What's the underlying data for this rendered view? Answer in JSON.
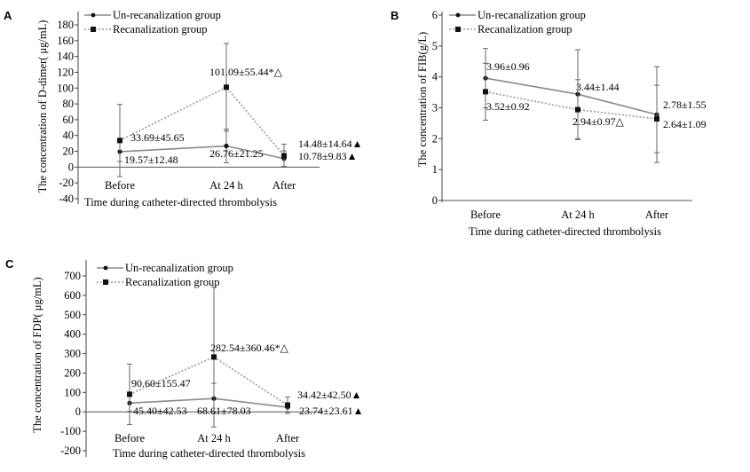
{
  "chart_data": [
    {
      "panel": "A",
      "type": "line",
      "categories": [
        "Before",
        "At 24 h",
        "After"
      ],
      "xlabel": "Time during catheter-directed thrombolysis",
      "ylabel": "The concentration of D-dimer( μg/mL)",
      "ylim": [
        -40,
        180
      ],
      "yticks": [
        -40,
        -20,
        0,
        20,
        40,
        60,
        80,
        100,
        120,
        140,
        160,
        180
      ],
      "grid": false,
      "legend": "top-left",
      "series": [
        {
          "name": "Un-recanalization group",
          "style": "solid",
          "marker": "diamond",
          "color": "#8a8a8a",
          "values": [
            19.57,
            26.76,
            10.78
          ],
          "err": [
            12.48,
            21.25,
            9.83
          ],
          "labels": [
            "19.57±12.48",
            "26.76±21.25",
            "10.78±9.83▲"
          ]
        },
        {
          "name": "Recanalization group",
          "style": "dotted",
          "marker": "square",
          "color": "#9a9a9a",
          "values": [
            33.69,
            101.09,
            14.48
          ],
          "err": [
            45.65,
            55.44,
            14.64
          ],
          "labels": [
            "33.69±45.65",
            "101.09±55.44*△",
            "14.48±14.64▲"
          ]
        }
      ]
    },
    {
      "panel": "B",
      "type": "line",
      "categories": [
        "Before",
        "At 24 h",
        "After"
      ],
      "xlabel": "Time during catheter-directed thrombolysis",
      "ylabel": "The concentration of FIB(g/L)",
      "ylim": [
        0,
        6
      ],
      "yticks": [
        0,
        1,
        2,
        3,
        4,
        5,
        6
      ],
      "grid": false,
      "legend": "top-left",
      "series": [
        {
          "name": "Un-recanalization group",
          "style": "solid",
          "marker": "diamond",
          "color": "#8a8a8a",
          "values": [
            3.96,
            3.44,
            2.78
          ],
          "err": [
            0.96,
            1.44,
            1.55
          ],
          "labels": [
            "3.96±0.96",
            "3.44±1.44",
            "2.78±1.55"
          ]
        },
        {
          "name": "Recanalization group",
          "style": "dotted",
          "marker": "square",
          "color": "#9a9a9a",
          "values": [
            3.52,
            2.94,
            2.64
          ],
          "err": [
            0.92,
            0.97,
            1.09
          ],
          "labels": [
            "3.52±0.92",
            "2.94±0.97△",
            "2.64±1.09"
          ]
        }
      ]
    },
    {
      "panel": "C",
      "type": "line",
      "categories": [
        "Before",
        "At 24 h",
        "After"
      ],
      "xlabel": "Time during catheter-directed thrombolysis",
      "ylabel": "The concentration of FDP( μg/mL)",
      "ylim": [
        -200,
        700
      ],
      "yticks": [
        -200,
        -100,
        0,
        100,
        200,
        300,
        400,
        500,
        600,
        700
      ],
      "grid": false,
      "legend": "top-left",
      "series": [
        {
          "name": "Un-recanalization group",
          "style": "solid",
          "marker": "diamond",
          "color": "#8a8a8a",
          "values": [
            45.4,
            68.61,
            23.74
          ],
          "err": [
            42.53,
            78.03,
            23.61
          ],
          "labels": [
            "45.40±42.53",
            "68.61±78.03",
            "23.74±23.61▲"
          ]
        },
        {
          "name": "Recanalization group",
          "style": "dotted",
          "marker": "square",
          "color": "#9a9a9a",
          "values": [
            90.6,
            282.54,
            34.42
          ],
          "err": [
            155.47,
            360.46,
            42.5
          ],
          "labels": [
            "90.60±155.47",
            "282.54±360.46*△",
            "34.42±42.50▲"
          ]
        }
      ]
    }
  ]
}
